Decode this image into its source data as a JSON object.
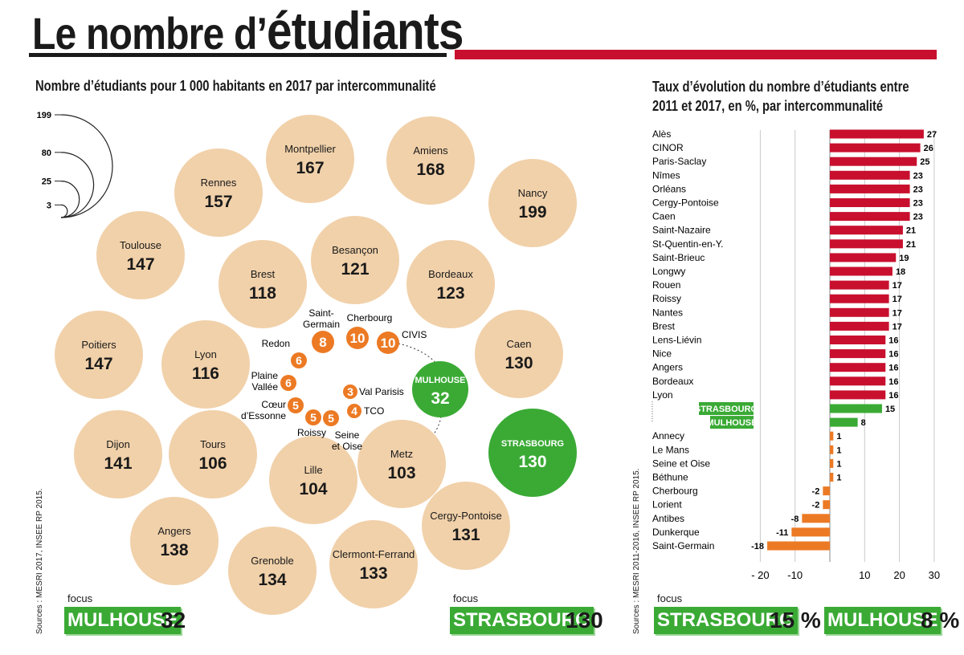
{
  "header": {
    "title_lead": "Le nombre d’",
    "title_emph": "étudiants"
  },
  "colors": {
    "beige": "#f1d1aa",
    "green": "#3aaa35",
    "orange": "#ec7a24",
    "red": "#c8102e",
    "title_red": "#c8102e"
  },
  "left_chart": {
    "subtitle": "Nombre d’étudiants pour 1 000 habitants en 2017 par intercommunalité",
    "size_legend": [
      199,
      80,
      25,
      3
    ],
    "source": "Sources : MESRI 2017, INSEE RP 2015.",
    "focus": [
      {
        "label": "focus",
        "name": "MULHOUSE",
        "value": "32"
      },
      {
        "label": "focus",
        "name": "STRASBOURG",
        "value": "130"
      }
    ]
  },
  "right_chart": {
    "subtitle_line1": "Taux d’évolution du nombre d’étudiants entre",
    "subtitle_line2": "2011 et 2017, en %, par intercommunalité",
    "source": "Sources : MESRI 2011-2016, INSEE RP 2015.",
    "focus_label": "focus",
    "focus": [
      {
        "name": "STRASBOURG",
        "value": "15 %"
      },
      {
        "name": "MULHOUSE",
        "value": "8 %"
      }
    ]
  },
  "chart_data": [
    {
      "type": "bubble",
      "title": "Nombre d’étudiants pour 1 000 habitants en 2017 par intercommunalité",
      "points": [
        {
          "name": "Montpellier",
          "value": 167
        },
        {
          "name": "Amiens",
          "value": 168
        },
        {
          "name": "Rennes",
          "value": 157
        },
        {
          "name": "Nancy",
          "value": 199
        },
        {
          "name": "Toulouse",
          "value": 147
        },
        {
          "name": "Besançon",
          "value": 121
        },
        {
          "name": "Brest",
          "value": 118
        },
        {
          "name": "Bordeaux",
          "value": 123
        },
        {
          "name": "Poitiers",
          "value": 147
        },
        {
          "name": "Lyon",
          "value": 116
        },
        {
          "name": "Caen",
          "value": 130
        },
        {
          "name": "Dijon",
          "value": 141
        },
        {
          "name": "Tours",
          "value": 106
        },
        {
          "name": "Lille",
          "value": 104
        },
        {
          "name": "Metz",
          "value": 103
        },
        {
          "name": "Cergy-Pontoise",
          "value": 131
        },
        {
          "name": "Angers",
          "value": 138
        },
        {
          "name": "Grenoble",
          "value": 134
        },
        {
          "name": "Clermont-Ferrand",
          "value": 133
        },
        {
          "name": "MULHOUSE",
          "value": 32,
          "highlight": true
        },
        {
          "name": "STRASBOURG",
          "value": 130,
          "highlight": true
        },
        {
          "name": "Saint-\nGermain",
          "value": 8,
          "small": true
        },
        {
          "name": "Cherbourg",
          "value": 10,
          "small": true
        },
        {
          "name": "CIVIS",
          "value": 10,
          "small": true
        },
        {
          "name": "Redon",
          "value": 6,
          "small": true
        },
        {
          "name": "Plaine\nVallée",
          "value": 6,
          "small": true
        },
        {
          "name": "Cœur\nd’Essonne",
          "value": 5,
          "small": true
        },
        {
          "name": "Roissy",
          "value": 5,
          "small": true
        },
        {
          "name": "Seine\net Oise",
          "value": 5,
          "small": true
        },
        {
          "name": "Val Parisis",
          "value": 3,
          "small": true
        },
        {
          "name": "TCO",
          "value": 4,
          "small": true
        }
      ]
    },
    {
      "type": "bar",
      "orientation": "horizontal",
      "title": "Taux d’évolution du nombre d’étudiants entre 2011 et 2017, en %, par intercommunalité",
      "xlim": [
        -20,
        30
      ],
      "xticks": [
        -20,
        -10,
        10,
        20,
        30
      ],
      "xtick_labels": [
        "- 20",
        "-10",
        "10",
        "20",
        "30"
      ],
      "categories": [
        "Alès",
        "CINOR",
        "Paris-Saclay",
        "Nîmes",
        "Orléans",
        "Cergy-Pontoise",
        "Caen",
        "Saint-Nazaire",
        "St-Quentin-en-Y.",
        "Saint-Brieuc",
        "Longwy",
        "Rouen",
        "Roissy",
        "Nantes",
        "Brest",
        "Lens-Liévin",
        "Nice",
        "Angers",
        "Bordeaux",
        "Lyon",
        "STRASBOURG",
        "MULHOUSE",
        "Annecy",
        "Le Mans",
        "Seine et Oise",
        "Béthune",
        "Cherbourg",
        "Lorient",
        "Antibes",
        "Dunkerque",
        "Saint-Germain"
      ],
      "values": [
        27,
        26,
        25,
        23,
        23,
        23,
        23,
        21,
        21,
        19,
        18,
        17,
        17,
        17,
        17,
        16,
        16,
        16,
        16,
        16,
        15,
        8,
        1,
        1,
        1,
        1,
        -2,
        -2,
        -8,
        -11,
        -18
      ],
      "groups": [
        "top",
        "top",
        "top",
        "top",
        "top",
        "top",
        "top",
        "top",
        "top",
        "top",
        "top",
        "top",
        "top",
        "top",
        "top",
        "top",
        "top",
        "top",
        "top",
        "top",
        "focus",
        "focus",
        "bottom",
        "bottom",
        "bottom",
        "bottom",
        "bottom",
        "bottom",
        "bottom",
        "bottom",
        "bottom"
      ]
    }
  ]
}
